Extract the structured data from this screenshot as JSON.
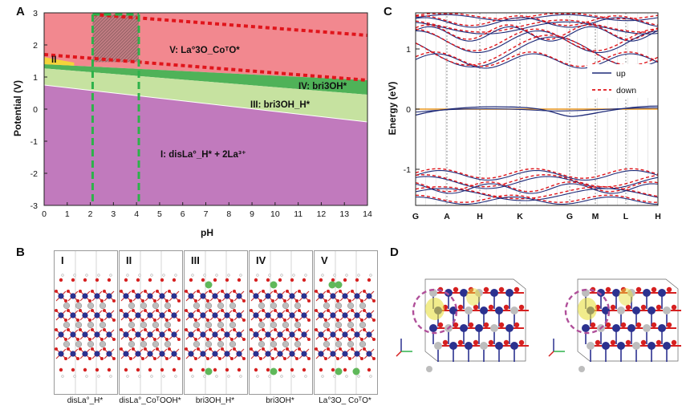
{
  "panels": {
    "a": "A",
    "b": "B",
    "c": "C",
    "d": "D"
  },
  "chart_data": [
    {
      "type": "area",
      "xlabel": "pH",
      "ylabel": "Potential (V)",
      "xlim": [
        0,
        14
      ],
      "ylim": [
        -3,
        3
      ],
      "x_ticks": [
        "0",
        "1",
        "2",
        "3",
        "4",
        "5",
        "6",
        "7",
        "8",
        "9",
        "10",
        "11",
        "12",
        "13",
        "14"
      ],
      "y_ticks": [
        "3",
        "2",
        "1",
        "0",
        "-1",
        "-2",
        "-3"
      ],
      "region_labels": {
        "I": "I: disLa°_H* + 2La³⁺",
        "II": "II",
        "III": "III: bri3OH_H*",
        "IV": "IV: bri3OH*",
        "V": "V: La°3O_CoᵀO*"
      },
      "boundaries": {
        "I_III": {
          "x": [
            0,
            14
          ],
          "y": [
            0.75,
            -0.4
          ]
        },
        "III_IV": {
          "x": [
            0,
            14
          ],
          "y": [
            1.27,
            0.45
          ]
        },
        "IV_V": {
          "x": [
            0,
            14
          ],
          "y": [
            1.4,
            0.9
          ]
        },
        "dotted_upper": {
          "x": [
            2.1,
            14
          ],
          "y": [
            2.95,
            2.3
          ]
        },
        "dotted_lower": {
          "x": [
            0,
            14
          ],
          "y": [
            1.7,
            0.9
          ]
        }
      },
      "highlight_pH": [
        2.1,
        4.1
      ],
      "colors": {
        "I": "#c17abd",
        "III": "#c6e2a0",
        "IV": "#4fb258",
        "V": "#f2888f",
        "II": "#f3d33a",
        "dotted": "#e0151b",
        "dashed": "#2db24a"
      }
    },
    {
      "type": "line",
      "ylabel": "Energy (eV)",
      "ylim": [
        -1.6,
        1.6
      ],
      "y_ticks": [
        "1",
        "0",
        "-1"
      ],
      "k_labels": [
        "G",
        "A",
        "H",
        "K",
        "G",
        "M",
        "L",
        "H"
      ],
      "legend": {
        "up": "up",
        "down": "down"
      },
      "legend_position": "right",
      "colors": {
        "up": "#1e2a78",
        "down": "#e0151b",
        "fermi": "#e8951f"
      }
    }
  ],
  "structures": [
    {
      "roman": "I",
      "caption": "disLa°_H*"
    },
    {
      "roman": "II",
      "caption": "disLa°_CoᵀOOH*"
    },
    {
      "roman": "III",
      "caption": "bri3OH_H*"
    },
    {
      "roman": "IV",
      "caption": "bri3OH*"
    },
    {
      "roman": "V",
      "caption": "La°3O_ CoᵀO*"
    }
  ]
}
